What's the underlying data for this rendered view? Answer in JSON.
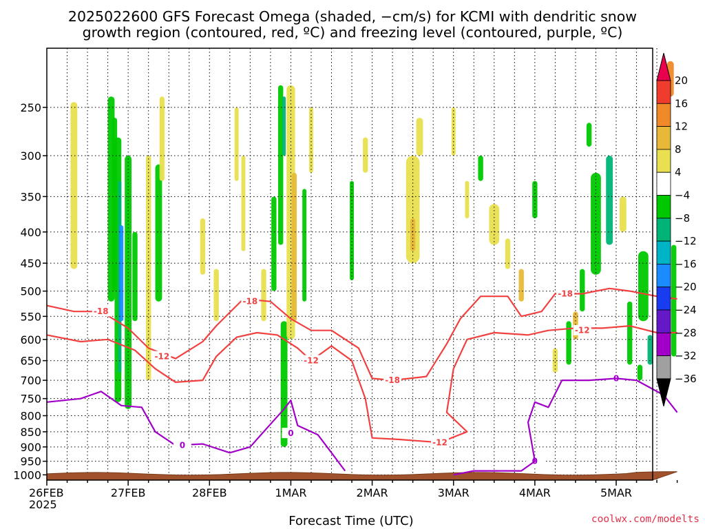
{
  "title": {
    "line1": "2025022600 GFS Forecast Omega (shaded, −cm/s) for KCMI with dendritic snow",
    "line2": "growth region (contoured, red, ºC) and freezing level (contoured, purple, ºC)"
  },
  "credit": "coolwx.com/modelts",
  "chart_data": {
    "type": "heatmap",
    "title": "2025022600 GFS Forecast Omega (shaded, −cm/s) for KCMI with dendritic snow growth region (contoured, red, ºC) and freezing level (contoured, purple, ºC)",
    "xlabel": "Forecast Time (UTC)",
    "ylabel": "",
    "x_ticks": [
      {
        "label": "26FEB",
        "sublabel": "2025",
        "hour": 0
      },
      {
        "label": "27FEB",
        "hour": 24
      },
      {
        "label": "28FEB",
        "hour": 48
      },
      {
        "label": "1MAR",
        "hour": 72
      },
      {
        "label": "2MAR",
        "hour": 96
      },
      {
        "label": "3MAR",
        "hour": 120
      },
      {
        "label": "4MAR",
        "hour": 144
      },
      {
        "label": "5MAR",
        "hour": 168
      }
    ],
    "xlim": [
      0,
      186
    ],
    "y_ticks": [
      250,
      300,
      350,
      400,
      450,
      500,
      550,
      600,
      650,
      700,
      750,
      800,
      850,
      900,
      950,
      1000
    ],
    "ylim": [
      1020,
      200
    ],
    "y_scale": "log-pressure (hPa)",
    "grid": true,
    "colorbar": {
      "levels": [
        20,
        16,
        12,
        8,
        4,
        -4,
        -8,
        -12,
        -16,
        -20,
        -24,
        -28,
        -32,
        -36
      ],
      "colors": [
        "#e8004c",
        "#f03c2c",
        "#f08a28",
        "#e8b838",
        "#e8e050",
        "#ffffff",
        "#00c800",
        "#00b478",
        "#00b4c8",
        "#1a8cff",
        "#1a3cf0",
        "#6418c8",
        "#a000c8",
        "#a0a0a0",
        "#000000"
      ]
    },
    "surface_fill_color": "#a0522d",
    "series": [
      {
        "name": "-18",
        "type": "contour",
        "color": "#f04040",
        "label_points": [
          [
            16,
            540
          ],
          [
            60,
            520
          ],
          [
            102,
            700
          ],
          [
            153,
            505
          ]
        ],
        "points": [
          [
            0,
            528
          ],
          [
            8,
            540
          ],
          [
            16,
            540
          ],
          [
            24,
            575
          ],
          [
            30,
            620
          ],
          [
            38,
            645
          ],
          [
            46,
            605
          ],
          [
            50,
            570
          ],
          [
            58,
            515
          ],
          [
            66,
            520
          ],
          [
            72,
            555
          ],
          [
            78,
            580
          ],
          [
            84,
            580
          ],
          [
            92,
            620
          ],
          [
            96,
            695
          ],
          [
            102,
            700
          ],
          [
            112,
            690
          ],
          [
            118,
            610
          ],
          [
            122,
            555
          ],
          [
            128,
            510
          ],
          [
            136,
            510
          ],
          [
            140,
            550
          ],
          [
            146,
            540
          ],
          [
            150,
            505
          ],
          [
            158,
            505
          ],
          [
            166,
            495
          ],
          [
            172,
            500
          ],
          [
            180,
            510
          ],
          [
            186,
            515
          ]
        ]
      },
      {
        "name": "-12",
        "type": "contour",
        "color": "#f04040",
        "label_points": [
          [
            34,
            640
          ],
          [
            78,
            650
          ],
          [
            116,
            885
          ],
          [
            158,
            580
          ]
        ],
        "points": [
          [
            0,
            590
          ],
          [
            10,
            605
          ],
          [
            18,
            600
          ],
          [
            26,
            625
          ],
          [
            32,
            670
          ],
          [
            38,
            705
          ],
          [
            46,
            700
          ],
          [
            50,
            640
          ],
          [
            56,
            595
          ],
          [
            62,
            585
          ],
          [
            68,
            590
          ],
          [
            74,
            620
          ],
          [
            78,
            650
          ],
          [
            84,
            615
          ],
          [
            90,
            650
          ],
          [
            94,
            750
          ],
          [
            96,
            870
          ],
          [
            104,
            875
          ],
          [
            116,
            885
          ],
          [
            124,
            850
          ],
          [
            118,
            790
          ],
          [
            120,
            670
          ],
          [
            124,
            600
          ],
          [
            132,
            585
          ],
          [
            142,
            590
          ],
          [
            148,
            580
          ],
          [
            156,
            575
          ],
          [
            164,
            575
          ],
          [
            172,
            570
          ],
          [
            180,
            585
          ],
          [
            186,
            585
          ]
        ]
      },
      {
        "name": "0",
        "type": "contour",
        "color": "#a000c8",
        "label_points": [
          [
            40,
            895
          ],
          [
            72,
            855
          ],
          [
            144,
            950
          ],
          [
            168,
            695
          ]
        ],
        "points": [
          [
            0,
            760
          ],
          [
            10,
            750
          ],
          [
            16,
            730
          ],
          [
            22,
            770
          ],
          [
            28,
            775
          ],
          [
            32,
            850
          ],
          [
            38,
            895
          ],
          [
            46,
            890
          ],
          [
            54,
            920
          ],
          [
            60,
            900
          ],
          [
            64,
            850
          ],
          [
            70,
            780
          ],
          [
            72,
            755
          ],
          [
            74,
            830
          ],
          [
            80,
            860
          ],
          [
            84,
            920
          ],
          [
            88,
            985
          ]
        ]
      },
      {
        "name": "0 (east)",
        "type": "contour",
        "color": "#a000c8",
        "points": [
          [
            120,
            1000
          ],
          [
            126,
            985
          ],
          [
            140,
            985
          ],
          [
            144,
            950
          ],
          [
            142,
            820
          ],
          [
            144,
            760
          ],
          [
            148,
            775
          ],
          [
            152,
            700
          ],
          [
            160,
            700
          ],
          [
            168,
            695
          ],
          [
            174,
            700
          ],
          [
            182,
            740
          ],
          [
            186,
            790
          ]
        ]
      }
    ]
  }
}
